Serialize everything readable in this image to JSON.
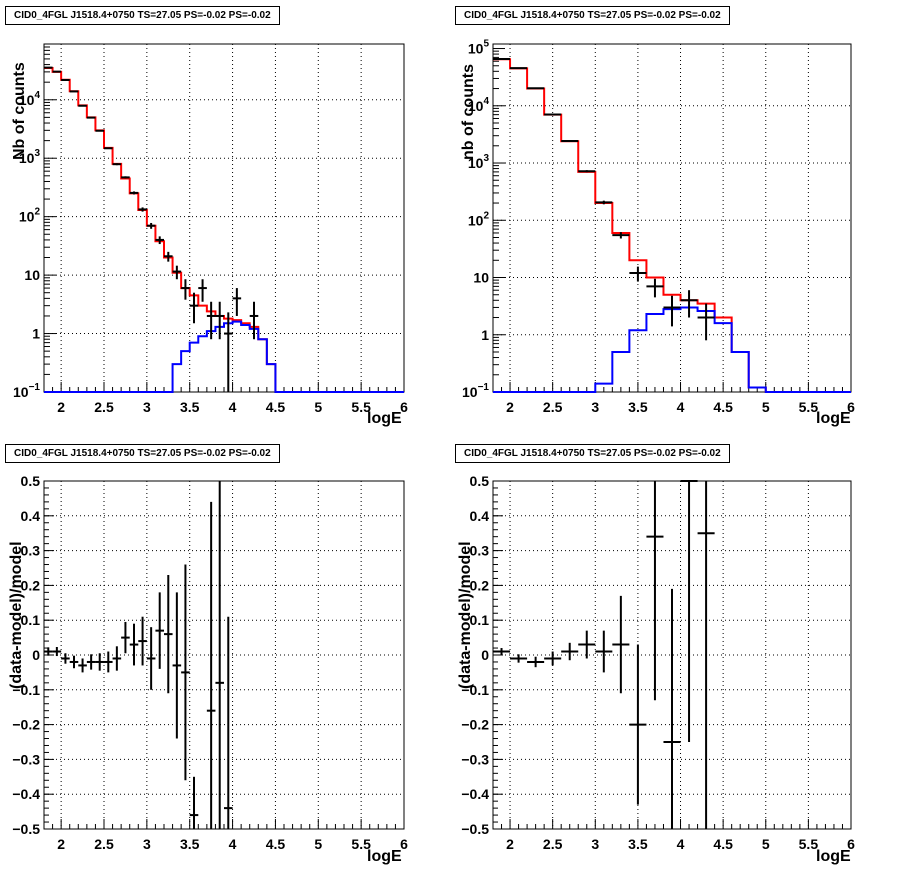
{
  "charts": [
    {
      "id": "tl",
      "title": "CID0_4FGL J1518.4+0750 TS=27.05 PS=-0.02 PS=-0.02",
      "ylabel": "Nb of counts",
      "xlabel": "logE"
    },
    {
      "id": "tr",
      "title": "CID0_4FGL J1518.4+0750 TS=27.05 PS=-0.02 PS=-0.02",
      "ylabel": "nb of counts",
      "xlabel": "logE"
    },
    {
      "id": "bl",
      "title": "CID0_4FGL J1518.4+0750 TS=27.05 PS=-0.02 PS=-0.02",
      "ylabel": "(data-model)/model",
      "xlabel": "logE"
    },
    {
      "id": "br",
      "title": "CID0_4FGL J1518.4+0750 TS=27.05 PS=-0.02 PS=-0.02",
      "ylabel": "(data-model)/model",
      "xlabel": "logE"
    }
  ],
  "chart_data": [
    {
      "type": "line",
      "yscale": "log",
      "xlim": [
        1.8,
        6.0
      ],
      "ylim": [
        0.1,
        90000
      ],
      "xticks": [
        "2",
        "2.5",
        "3",
        "3.5",
        "4",
        "4.5",
        "5",
        "5.5",
        "6"
      ],
      "grid": true,
      "bin_edges": [
        1.8,
        1.9,
        2.0,
        2.1,
        2.2,
        2.3,
        2.4,
        2.5,
        2.6,
        2.7,
        2.8,
        2.9,
        3.0,
        3.1,
        3.2,
        3.3,
        3.4,
        3.5,
        3.6,
        3.7,
        3.8,
        3.9,
        4.0,
        4.1,
        4.2,
        4.3,
        4.4,
        4.5,
        4.6,
        4.7,
        4.8,
        4.9,
        5.0,
        5.1,
        5.2,
        5.3,
        5.4,
        5.5,
        5.6,
        5.7,
        5.8,
        5.9,
        6.0
      ],
      "series": [
        {
          "color": "#ff0000",
          "values": [
            35000,
            30000,
            22000,
            14000,
            8000,
            5000,
            3000,
            1500,
            800,
            450,
            250,
            130,
            70,
            38,
            20,
            11,
            6,
            4.5,
            3,
            2.4,
            2,
            1.8,
            1.7,
            1.5,
            1.3,
            0.8,
            0.3,
            0.1,
            0.1,
            0.1,
            0.1,
            0.1,
            0.1,
            0.1,
            0.1,
            0.1,
            0.1,
            0.1,
            0.1,
            0.1,
            0.1,
            0.1
          ]
        },
        {
          "color": "#0000ff",
          "values": [
            0.1,
            0.1,
            0.1,
            0.1,
            0.1,
            0.1,
            0.1,
            0.1,
            0.1,
            0.1,
            0.1,
            0.1,
            0.1,
            0.1,
            0.1,
            0.3,
            0.5,
            0.7,
            0.9,
            1.1,
            1.3,
            1.5,
            1.6,
            1.4,
            1.2,
            0.8,
            0.3,
            0.1,
            0.1,
            0.1,
            0.1,
            0.1,
            0.1,
            0.1,
            0.1,
            0.1,
            0.1,
            0.1,
            0.1,
            0.1,
            0.1,
            0.1
          ]
        }
      ],
      "points": [
        {
          "x": 1.85,
          "y": 35500,
          "lo": 35100,
          "hi": 35900
        },
        {
          "x": 1.95,
          "y": 30300,
          "lo": 29900,
          "hi": 30700
        },
        {
          "x": 2.05,
          "y": 21800,
          "lo": 21500,
          "hi": 22100
        },
        {
          "x": 2.15,
          "y": 13900,
          "lo": 13700,
          "hi": 14100
        },
        {
          "x": 2.25,
          "y": 7900,
          "lo": 7800,
          "hi": 8000
        },
        {
          "x": 2.35,
          "y": 4950,
          "lo": 4880,
          "hi": 5020
        },
        {
          "x": 2.45,
          "y": 2950,
          "lo": 2900,
          "hi": 3000
        },
        {
          "x": 2.55,
          "y": 1480,
          "lo": 1440,
          "hi": 1520
        },
        {
          "x": 2.65,
          "y": 790,
          "lo": 760,
          "hi": 820
        },
        {
          "x": 2.75,
          "y": 470,
          "lo": 450,
          "hi": 490
        },
        {
          "x": 2.85,
          "y": 255,
          "lo": 240,
          "hi": 270
        },
        {
          "x": 2.95,
          "y": 133,
          "lo": 122,
          "hi": 144
        },
        {
          "x": 3.05,
          "y": 70,
          "lo": 62,
          "hi": 78
        },
        {
          "x": 3.15,
          "y": 40,
          "lo": 34,
          "hi": 46
        },
        {
          "x": 3.25,
          "y": 21,
          "lo": 17,
          "hi": 25
        },
        {
          "x": 3.35,
          "y": 11.5,
          "lo": 8.5,
          "hi": 14.5
        },
        {
          "x": 3.45,
          "y": 6,
          "lo": 3.8,
          "hi": 8.5
        },
        {
          "x": 3.55,
          "y": 3,
          "lo": 1.5,
          "hi": 5
        },
        {
          "x": 3.65,
          "y": 6,
          "lo": 3.5,
          "hi": 8.5
        },
        {
          "x": 3.75,
          "y": 2,
          "lo": 0.8,
          "hi": 3.5
        },
        {
          "x": 3.85,
          "y": 2,
          "lo": 0.8,
          "hi": 3.5
        },
        {
          "x": 3.95,
          "y": 1,
          "lo": 0.1,
          "hi": 2.3
        },
        {
          "x": 4.05,
          "y": 4,
          "lo": 2,
          "hi": 6
        },
        {
          "x": 4.25,
          "y": 2,
          "lo": 0.8,
          "hi": 3.5
        }
      ]
    },
    {
      "type": "line",
      "yscale": "log",
      "xlim": [
        1.8,
        6.0
      ],
      "ylim": [
        0.1,
        120000
      ],
      "xticks": [
        "2",
        "2.5",
        "3",
        "3.5",
        "4",
        "4.5",
        "5",
        "5.5",
        "6"
      ],
      "grid": true,
      "bin_edges": [
        1.8,
        2.0,
        2.2,
        2.4,
        2.6,
        2.8,
        3.0,
        3.2,
        3.4,
        3.6,
        3.8,
        4.0,
        4.2,
        4.4,
        4.6,
        4.8,
        5.0,
        5.2,
        5.4,
        5.6,
        5.8,
        6.0
      ],
      "series": [
        {
          "color": "#ff0000",
          "values": [
            65000,
            45000,
            20000,
            7000,
            2400,
            700,
            200,
            60,
            20,
            10,
            5,
            4,
            3.5,
            2,
            0.5,
            0.12,
            0.1,
            0.1,
            0.1,
            0.1,
            0.1
          ]
        },
        {
          "color": "#0000ff",
          "values": [
            0.1,
            0.1,
            0.1,
            0.1,
            0.1,
            0.1,
            0.14,
            0.5,
            1.2,
            2.3,
            2.8,
            3.0,
            2.6,
            1.6,
            0.5,
            0.12,
            0.1,
            0.1,
            0.1,
            0.1,
            0.1
          ]
        }
      ],
      "points": [
        {
          "x": 1.9,
          "y": 65500,
          "lo": 65200,
          "hi": 65800
        },
        {
          "x": 2.1,
          "y": 45400,
          "lo": 45100,
          "hi": 45700
        },
        {
          "x": 2.3,
          "y": 20200,
          "lo": 20000,
          "hi": 20400
        },
        {
          "x": 2.5,
          "y": 7050,
          "lo": 6970,
          "hi": 7130
        },
        {
          "x": 2.7,
          "y": 2430,
          "lo": 2380,
          "hi": 2480
        },
        {
          "x": 2.9,
          "y": 720,
          "lo": 690,
          "hi": 750
        },
        {
          "x": 3.1,
          "y": 205,
          "lo": 190,
          "hi": 220
        },
        {
          "x": 3.3,
          "y": 55,
          "lo": 48,
          "hi": 62
        },
        {
          "x": 3.5,
          "y": 12,
          "lo": 8.5,
          "hi": 15.5
        },
        {
          "x": 3.7,
          "y": 7,
          "lo": 4.5,
          "hi": 9.5
        },
        {
          "x": 3.9,
          "y": 3,
          "lo": 1.4,
          "hi": 4.8
        },
        {
          "x": 4.1,
          "y": 4,
          "lo": 2,
          "hi": 6
        },
        {
          "x": 4.3,
          "y": 2,
          "lo": 0.8,
          "hi": 3.5
        }
      ]
    },
    {
      "type": "scatter",
      "xlim": [
        1.8,
        6.0
      ],
      "ylim": [
        -0.5,
        0.5
      ],
      "xticks": [
        "2",
        "2.5",
        "3",
        "3.5",
        "4",
        "4.5",
        "5",
        "5.5",
        "6"
      ],
      "yticks": [
        "−0.5",
        "−0.4",
        "−0.3",
        "−0.2",
        "−0.1",
        "0",
        "0.1",
        "0.2",
        "0.3",
        "0.4",
        "0.5"
      ],
      "grid": true,
      "points": [
        {
          "x": 1.85,
          "y": 0.01,
          "err": 0.012
        },
        {
          "x": 1.95,
          "y": 0.01,
          "err": 0.013
        },
        {
          "x": 2.05,
          "y": -0.01,
          "err": 0.015
        },
        {
          "x": 2.15,
          "y": -0.02,
          "err": 0.018
        },
        {
          "x": 2.25,
          "y": -0.03,
          "err": 0.02
        },
        {
          "x": 2.35,
          "y": -0.02,
          "err": 0.022
        },
        {
          "x": 2.45,
          "y": -0.02,
          "err": 0.025
        },
        {
          "x": 2.55,
          "y": -0.02,
          "err": 0.03
        },
        {
          "x": 2.65,
          "y": -0.01,
          "err": 0.035
        },
        {
          "x": 2.75,
          "y": 0.05,
          "err": 0.045
        },
        {
          "x": 2.85,
          "y": 0.03,
          "err": 0.06
        },
        {
          "x": 2.95,
          "y": 0.04,
          "err": 0.07
        },
        {
          "x": 3.05,
          "y": -0.01,
          "err": 0.09
        },
        {
          "x": 3.15,
          "y": 0.07,
          "err": 0.11
        },
        {
          "x": 3.25,
          "y": 0.06,
          "err": 0.17
        },
        {
          "x": 3.35,
          "y": -0.03,
          "err": 0.21
        },
        {
          "x": 3.45,
          "y": -0.05,
          "err": 0.31
        },
        {
          "x": 3.55,
          "y": -0.46,
          "err": 0.11
        },
        {
          "x": 3.75,
          "y": -0.16,
          "err": 0.6
        },
        {
          "x": 3.85,
          "y": -0.08,
          "err": 0.6
        },
        {
          "x": 3.95,
          "y": -0.44,
          "err": 0.55
        }
      ]
    },
    {
      "type": "scatter",
      "xlim": [
        1.8,
        6.0
      ],
      "ylim": [
        -0.5,
        0.5
      ],
      "xticks": [
        "2",
        "2.5",
        "3",
        "3.5",
        "4",
        "4.5",
        "5",
        "5.5",
        "6"
      ],
      "yticks": [
        "−0.5",
        "−0.4",
        "−0.3",
        "−0.2",
        "−0.1",
        "0",
        "0.1",
        "0.2",
        "0.3",
        "0.4",
        "0.5"
      ],
      "grid": true,
      "points": [
        {
          "x": 1.9,
          "y": 0.01,
          "err": 0.01
        },
        {
          "x": 2.1,
          "y": -0.01,
          "err": 0.012
        },
        {
          "x": 2.3,
          "y": -0.02,
          "err": 0.015
        },
        {
          "x": 2.5,
          "y": -0.01,
          "err": 0.02
        },
        {
          "x": 2.7,
          "y": 0.01,
          "err": 0.025
        },
        {
          "x": 2.9,
          "y": 0.03,
          "err": 0.04
        },
        {
          "x": 3.1,
          "y": 0.01,
          "err": 0.06
        },
        {
          "x": 3.3,
          "y": 0.03,
          "err": 0.14
        },
        {
          "x": 3.5,
          "y": -0.2,
          "err": 0.23
        },
        {
          "x": 3.7,
          "y": 0.34,
          "err": 0.47
        },
        {
          "x": 3.9,
          "y": -0.25,
          "err": 0.44
        },
        {
          "x": 4.1,
          "y": 0.5,
          "err": 0.75
        },
        {
          "x": 4.3,
          "y": 0.35,
          "err": 0.9
        }
      ]
    }
  ]
}
